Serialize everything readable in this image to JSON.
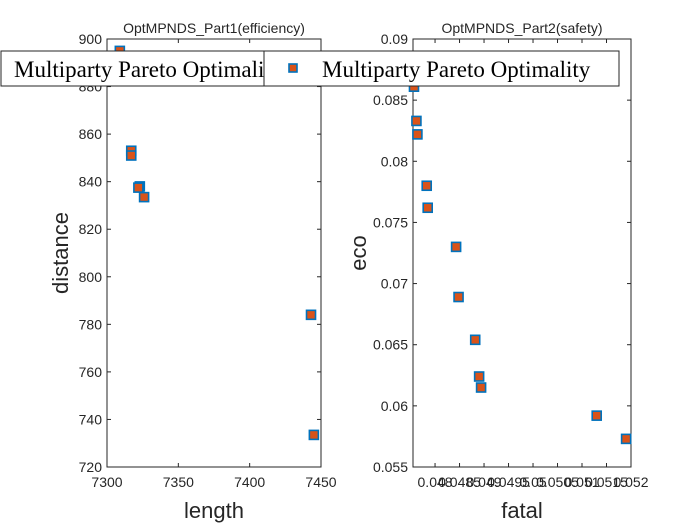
{
  "chart_data": [
    {
      "type": "scatter",
      "title": "OptMPNDS_Part1(efficiency)",
      "xlabel": "length",
      "ylabel": "distance",
      "xlim": [
        7300,
        7450
      ],
      "ylim": [
        720,
        900
      ],
      "xticks": [
        7300,
        7350,
        7400,
        7450
      ],
      "yticks": [
        720,
        740,
        760,
        780,
        800,
        820,
        840,
        860,
        880,
        900
      ],
      "xtick_labels": [
        "7300",
        "7350",
        "7400",
        "7450"
      ],
      "ytick_labels": [
        "720",
        "740",
        "760",
        "780",
        "800",
        "820",
        "840",
        "860",
        "880",
        "900"
      ],
      "legend": "Multiparty Pareto Optimality",
      "legend_location": "top (overlapping, truncated)",
      "series": [
        {
          "name": "Multiparty Pareto Optimality",
          "points": [
            [
              7309,
              895
            ],
            [
              7317,
              853
            ],
            [
              7317,
              851
            ],
            [
              7323,
              838
            ],
            [
              7322,
              837.5
            ],
            [
              7326,
              833.5
            ],
            [
              7443,
              784
            ],
            [
              7445,
              733.5
            ]
          ]
        }
      ]
    },
    {
      "type": "scatter",
      "title": "OptMPNDS_Part2(safety)",
      "xlabel": "fatal",
      "ylabel": "eco",
      "xlim": [
        0.04755,
        0.052
      ],
      "ylim": [
        0.055,
        0.09
      ],
      "xticks": [
        0.048,
        0.0485,
        0.049,
        0.0495,
        0.05,
        0.0505,
        0.051,
        0.0515,
        0.052
      ],
      "yticks": [
        0.055,
        0.06,
        0.065,
        0.07,
        0.075,
        0.08,
        0.085,
        0.09
      ],
      "xtick_labels": [
        "0.048",
        "0.0485",
        "0.049",
        "0.0495",
        "0.05",
        "0.0505",
        "0.051",
        "0.0515",
        "0.052"
      ],
      "ytick_labels": [
        "0.055",
        "0.06",
        "0.065",
        "0.07",
        "0.075",
        "0.08",
        "0.085",
        "0.09"
      ],
      "legend": "Multiparty Pareto Optimality",
      "legend_location": "top",
      "series": [
        {
          "name": "Multiparty Pareto Optimality",
          "points": [
            [
              0.04757,
              0.0861
            ],
            [
              0.04762,
              0.0833
            ],
            [
              0.04764,
              0.0822
            ],
            [
              0.04783,
              0.078
            ],
            [
              0.04785,
              0.0762
            ],
            [
              0.04843,
              0.073
            ],
            [
              0.04848,
              0.0689
            ],
            [
              0.04882,
              0.0654
            ],
            [
              0.0489,
              0.0624
            ],
            [
              0.04894,
              0.0615
            ],
            [
              0.0513,
              0.0592
            ],
            [
              0.0519,
              0.0573
            ]
          ]
        }
      ]
    }
  ],
  "colors": {
    "marker_face": "#D95319",
    "marker_edge": "#0072BD",
    "axis": "#262626",
    "background": "#ffffff"
  }
}
